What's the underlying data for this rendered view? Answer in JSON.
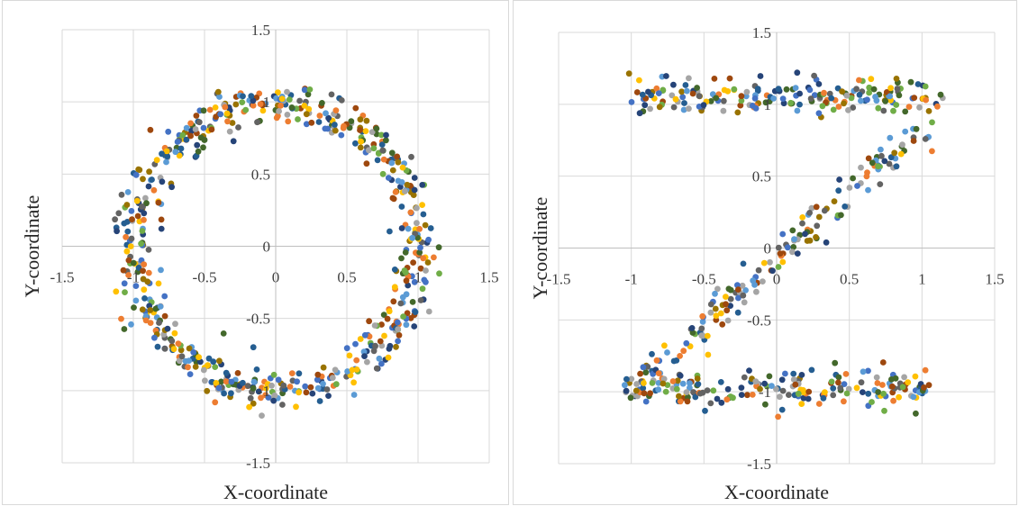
{
  "chart_data": [
    {
      "type": "scatter",
      "shape": "circle",
      "xlabel": "X-coordinate",
      "ylabel": "Y-coordinate",
      "xlim": [
        -1.5,
        1.5
      ],
      "ylim": [
        -1.5,
        1.5
      ],
      "xticks": [
        "-1.5",
        "-1",
        "-0.5",
        "0",
        "0.5",
        "1",
        "1.5"
      ],
      "yticks": [
        "1.5",
        "1",
        "0.5",
        "0",
        "-0.5",
        "-1",
        "-1.5"
      ],
      "grid": true,
      "legend": "none",
      "point_count": 640,
      "radius": 1.0,
      "noise": 0.07,
      "series_colors": [
        "#5b9bd5",
        "#ed7d31",
        "#a5a5a5",
        "#ffc000",
        "#4472c4",
        "#70ad47",
        "#255e91",
        "#9e480e",
        "#636363",
        "#997300",
        "#43682b",
        "#264478"
      ]
    },
    {
      "type": "scatter",
      "shape": "Z",
      "xlabel": "X-coordinate",
      "ylabel": "Y-coordinate",
      "xlim": [
        -1.5,
        1.5
      ],
      "ylim": [
        -1.5,
        1.5
      ],
      "xticks": [
        "-1.5",
        "-1",
        "-0.5",
        "0",
        "0.5",
        "1",
        "1.5"
      ],
      "yticks": [
        "1.5",
        "1",
        "0.5",
        "0",
        "-0.5",
        "-1",
        "-1.5"
      ],
      "grid": true,
      "legend": "none",
      "top_bar": {
        "x_range": [
          -1.05,
          1.15
        ],
        "y": 1.05,
        "count": 190
      },
      "bottom_bar": {
        "x_range": [
          -1.05,
          1.05
        ],
        "y": -0.98,
        "count": 190
      },
      "diagonal": {
        "from": [
          -1.0,
          -1.0
        ],
        "to": [
          1.0,
          0.85
        ],
        "count": 170
      },
      "noise": 0.07,
      "series_colors": [
        "#5b9bd5",
        "#ed7d31",
        "#a5a5a5",
        "#ffc000",
        "#4472c4",
        "#70ad47",
        "#255e91",
        "#9e480e",
        "#636363",
        "#997300",
        "#43682b",
        "#264478"
      ]
    }
  ]
}
